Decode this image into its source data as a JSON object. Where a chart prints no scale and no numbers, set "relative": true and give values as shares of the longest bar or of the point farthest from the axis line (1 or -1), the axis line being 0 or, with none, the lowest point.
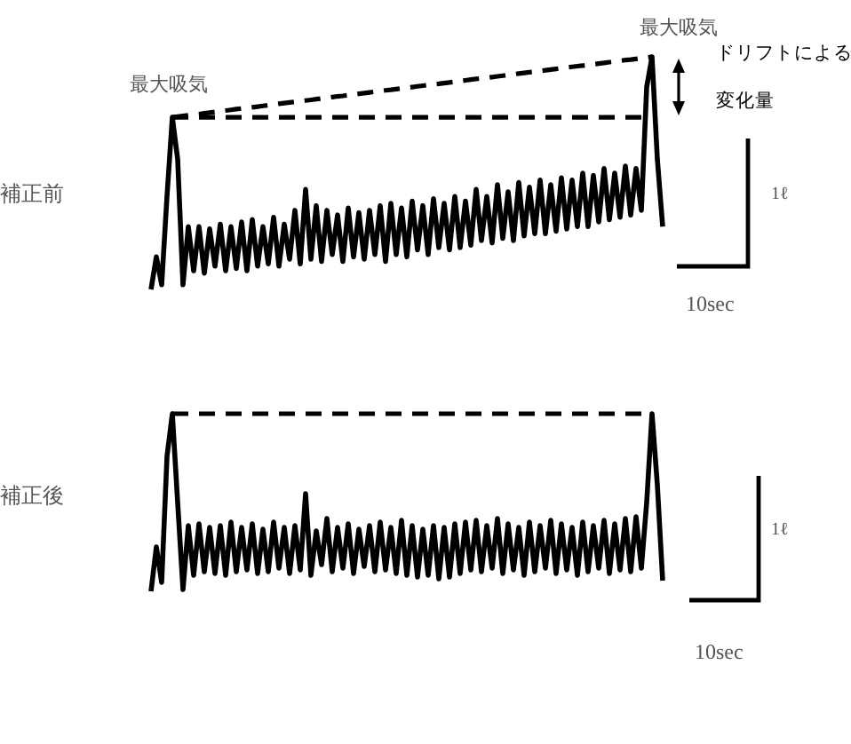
{
  "chart_data": [
    {
      "type": "line",
      "title": "補正前",
      "relative": true,
      "categories": [
        null,
        null,
        null,
        null,
        null,
        null,
        null,
        null,
        null,
        null,
        null,
        null,
        null,
        null,
        null,
        null,
        null,
        null,
        null,
        null,
        null,
        null,
        null,
        null,
        null,
        null,
        null,
        null,
        null,
        null,
        null,
        null,
        null,
        null,
        null,
        null,
        null,
        null,
        null,
        null,
        null,
        null,
        null,
        null,
        null,
        null,
        null,
        null,
        null,
        null,
        null,
        null,
        null,
        null,
        null,
        null,
        null,
        null,
        null,
        null,
        null,
        null,
        null,
        null,
        null,
        null,
        null,
        null,
        null,
        null,
        null,
        null,
        null,
        null,
        null,
        null,
        null,
        null,
        null,
        null,
        null,
        null,
        null,
        null,
        null,
        null,
        null,
        null,
        null,
        null,
        null,
        null,
        null,
        null,
        null,
        null,
        null
      ],
      "series": [
        {
          "color": "#000000",
          "line_style": "solid",
          "values": [
            0,
            0.14,
            0.02,
            0.4,
            0.74,
            0.56,
            0.02,
            0.27,
            0.08,
            0.27,
            0.07,
            0.26,
            0.1,
            0.28,
            0.08,
            0.27,
            0.09,
            0.29,
            0.08,
            0.3,
            0.1,
            0.27,
            0.11,
            0.31,
            0.1,
            0.28,
            0.13,
            0.34,
            0.11,
            0.43,
            0.13,
            0.36,
            0.12,
            0.34,
            0.15,
            0.32,
            0.12,
            0.35,
            0.14,
            0.33,
            0.13,
            0.34,
            0.15,
            0.36,
            0.12,
            0.37,
            0.15,
            0.35,
            0.14,
            0.38,
            0.17,
            0.36,
            0.15,
            0.39,
            0.18,
            0.37,
            0.17,
            0.4,
            0.18,
            0.38,
            0.19,
            0.43,
            0.21,
            0.4,
            0.2,
            0.45,
            0.22,
            0.42,
            0.21,
            0.46,
            0.23,
            0.44,
            0.24,
            0.47,
            0.24,
            0.45,
            0.25,
            0.48,
            0.26,
            0.47,
            0.27,
            0.5,
            0.27,
            0.49,
            0.29,
            0.52,
            0.3,
            0.5,
            0.31,
            0.53,
            0.32,
            0.52,
            0.34,
            0.87,
            1,
            0.56,
            0.27
          ]
        },
        {
          "color": "#000000",
          "line_style": "dashed",
          "values": [
            null,
            null,
            null,
            null,
            0.74,
            0.743,
            0.746,
            0.749,
            0.752,
            0.754,
            0.757,
            0.76,
            0.763,
            0.766,
            0.769,
            0.772,
            0.775,
            0.778,
            0.78,
            0.783,
            0.786,
            0.789,
            0.792,
            0.795,
            0.798,
            0.801,
            0.804,
            0.806,
            0.809,
            0.812,
            0.815,
            0.818,
            0.821,
            0.824,
            0.827,
            0.83,
            0.832,
            0.835,
            0.838,
            0.841,
            0.844,
            0.847,
            0.85,
            0.853,
            0.856,
            0.858,
            0.861,
            0.864,
            0.867,
            0.87,
            0.873,
            0.876,
            0.879,
            0.882,
            0.884,
            0.887,
            0.89,
            0.893,
            0.896,
            0.899,
            0.902,
            0.905,
            0.908,
            0.91,
            0.913,
            0.916,
            0.919,
            0.922,
            0.925,
            0.928,
            0.931,
            0.934,
            0.936,
            0.939,
            0.942,
            0.945,
            0.948,
            0.951,
            0.954,
            0.957,
            0.96,
            0.962,
            0.965,
            0.968,
            0.971,
            0.974,
            0.977,
            0.98,
            0.983,
            0.986,
            0.988,
            0.991,
            0.994,
            0.997,
            1,
            null,
            null
          ]
        },
        {
          "color": "#000000",
          "line_style": "dashed",
          "values": [
            null,
            null,
            null,
            null,
            0.74,
            0.74,
            0.74,
            0.74,
            0.74,
            0.74,
            0.74,
            0.74,
            0.74,
            0.74,
            0.74,
            0.74,
            0.74,
            0.74,
            0.74,
            0.74,
            0.74,
            0.74,
            0.74,
            0.74,
            0.74,
            0.74,
            0.74,
            0.74,
            0.74,
            0.74,
            0.74,
            0.74,
            0.74,
            0.74,
            0.74,
            0.74,
            0.74,
            0.74,
            0.74,
            0.74,
            0.74,
            0.74,
            0.74,
            0.74,
            0.74,
            0.74,
            0.74,
            0.74,
            0.74,
            0.74,
            0.74,
            0.74,
            0.74,
            0.74,
            0.74,
            0.74,
            0.74,
            0.74,
            0.74,
            0.74,
            0.74,
            0.74,
            0.74,
            0.74,
            0.74,
            0.74,
            0.74,
            0.74,
            0.74,
            0.74,
            0.74,
            0.74,
            0.74,
            0.74,
            0.74,
            0.74,
            0.74,
            0.74,
            0.74,
            0.74,
            0.74,
            0.74,
            0.74,
            0.74,
            0.74,
            0.74,
            0.74,
            0.74,
            0.74,
            0.74,
            0.74,
            0.74,
            0.74,
            0.74,
            0.74,
            null,
            null
          ]
        }
      ],
      "annotations": [
        "最大吸気",
        "最大吸気",
        "ドリフトによる",
        "変化量",
        "1ℓ",
        "10sec"
      ]
    },
    {
      "type": "line",
      "title": "補正後",
      "relative": true,
      "categories": [
        null,
        null,
        null,
        null,
        null,
        null,
        null,
        null,
        null,
        null,
        null,
        null,
        null,
        null,
        null,
        null,
        null,
        null,
        null,
        null,
        null,
        null,
        null,
        null,
        null,
        null,
        null,
        null,
        null,
        null,
        null,
        null,
        null,
        null,
        null,
        null,
        null,
        null,
        null,
        null,
        null,
        null,
        null,
        null,
        null,
        null,
        null,
        null,
        null,
        null,
        null,
        null,
        null,
        null,
        null,
        null,
        null,
        null,
        null,
        null,
        null,
        null,
        null,
        null,
        null,
        null,
        null,
        null,
        null,
        null,
        null,
        null,
        null,
        null,
        null,
        null,
        null,
        null,
        null,
        null,
        null,
        null,
        null,
        null,
        null,
        null,
        null,
        null,
        null,
        null,
        null,
        null,
        null,
        null,
        null,
        null,
        null
      ],
      "series": [
        {
          "color": "#000000",
          "line_style": "solid",
          "values": [
            0,
            0.25,
            0.05,
            0.76,
            1,
            0.5,
            0.01,
            0.37,
            0.09,
            0.38,
            0.11,
            0.36,
            0.1,
            0.37,
            0.09,
            0.39,
            0.11,
            0.36,
            0.12,
            0.38,
            0.1,
            0.35,
            0.11,
            0.39,
            0.13,
            0.36,
            0.1,
            0.37,
            0.12,
            0.55,
            0.09,
            0.34,
            0.15,
            0.41,
            0.11,
            0.36,
            0.13,
            0.38,
            0.1,
            0.35,
            0.14,
            0.37,
            0.11,
            0.39,
            0.12,
            0.36,
            0.1,
            0.4,
            0.09,
            0.37,
            0.08,
            0.35,
            0.09,
            0.37,
            0.07,
            0.36,
            0.08,
            0.38,
            0.1,
            0.39,
            0.12,
            0.4,
            0.11,
            0.37,
            0.13,
            0.41,
            0.1,
            0.38,
            0.12,
            0.36,
            0.09,
            0.39,
            0.11,
            0.37,
            0.13,
            0.4,
            0.1,
            0.38,
            0.12,
            0.36,
            0.09,
            0.39,
            0.11,
            0.37,
            0.13,
            0.4,
            0.1,
            0.38,
            0.12,
            0.41,
            0.11,
            0.42,
            0.13,
            0.5,
            1,
            0.6,
            0.06
          ]
        },
        {
          "color": "#000000",
          "line_style": "dashed",
          "values": [
            null,
            null,
            null,
            null,
            1,
            1,
            1,
            1,
            1,
            1,
            1,
            1,
            1,
            1,
            1,
            1,
            1,
            1,
            1,
            1,
            1,
            1,
            1,
            1,
            1,
            1,
            1,
            1,
            1,
            1,
            1,
            1,
            1,
            1,
            1,
            1,
            1,
            1,
            1,
            1,
            1,
            1,
            1,
            1,
            1,
            1,
            1,
            1,
            1,
            1,
            1,
            1,
            1,
            1,
            1,
            1,
            1,
            1,
            1,
            1,
            1,
            1,
            1,
            1,
            1,
            1,
            1,
            1,
            1,
            1,
            1,
            1,
            1,
            1,
            1,
            1,
            1,
            1,
            1,
            1,
            1,
            1,
            1,
            1,
            1,
            1,
            1,
            1,
            1,
            1,
            1,
            1,
            1,
            1,
            1,
            null,
            null
          ]
        }
      ],
      "annotations": [
        "1ℓ",
        "10sec"
      ]
    }
  ]
}
